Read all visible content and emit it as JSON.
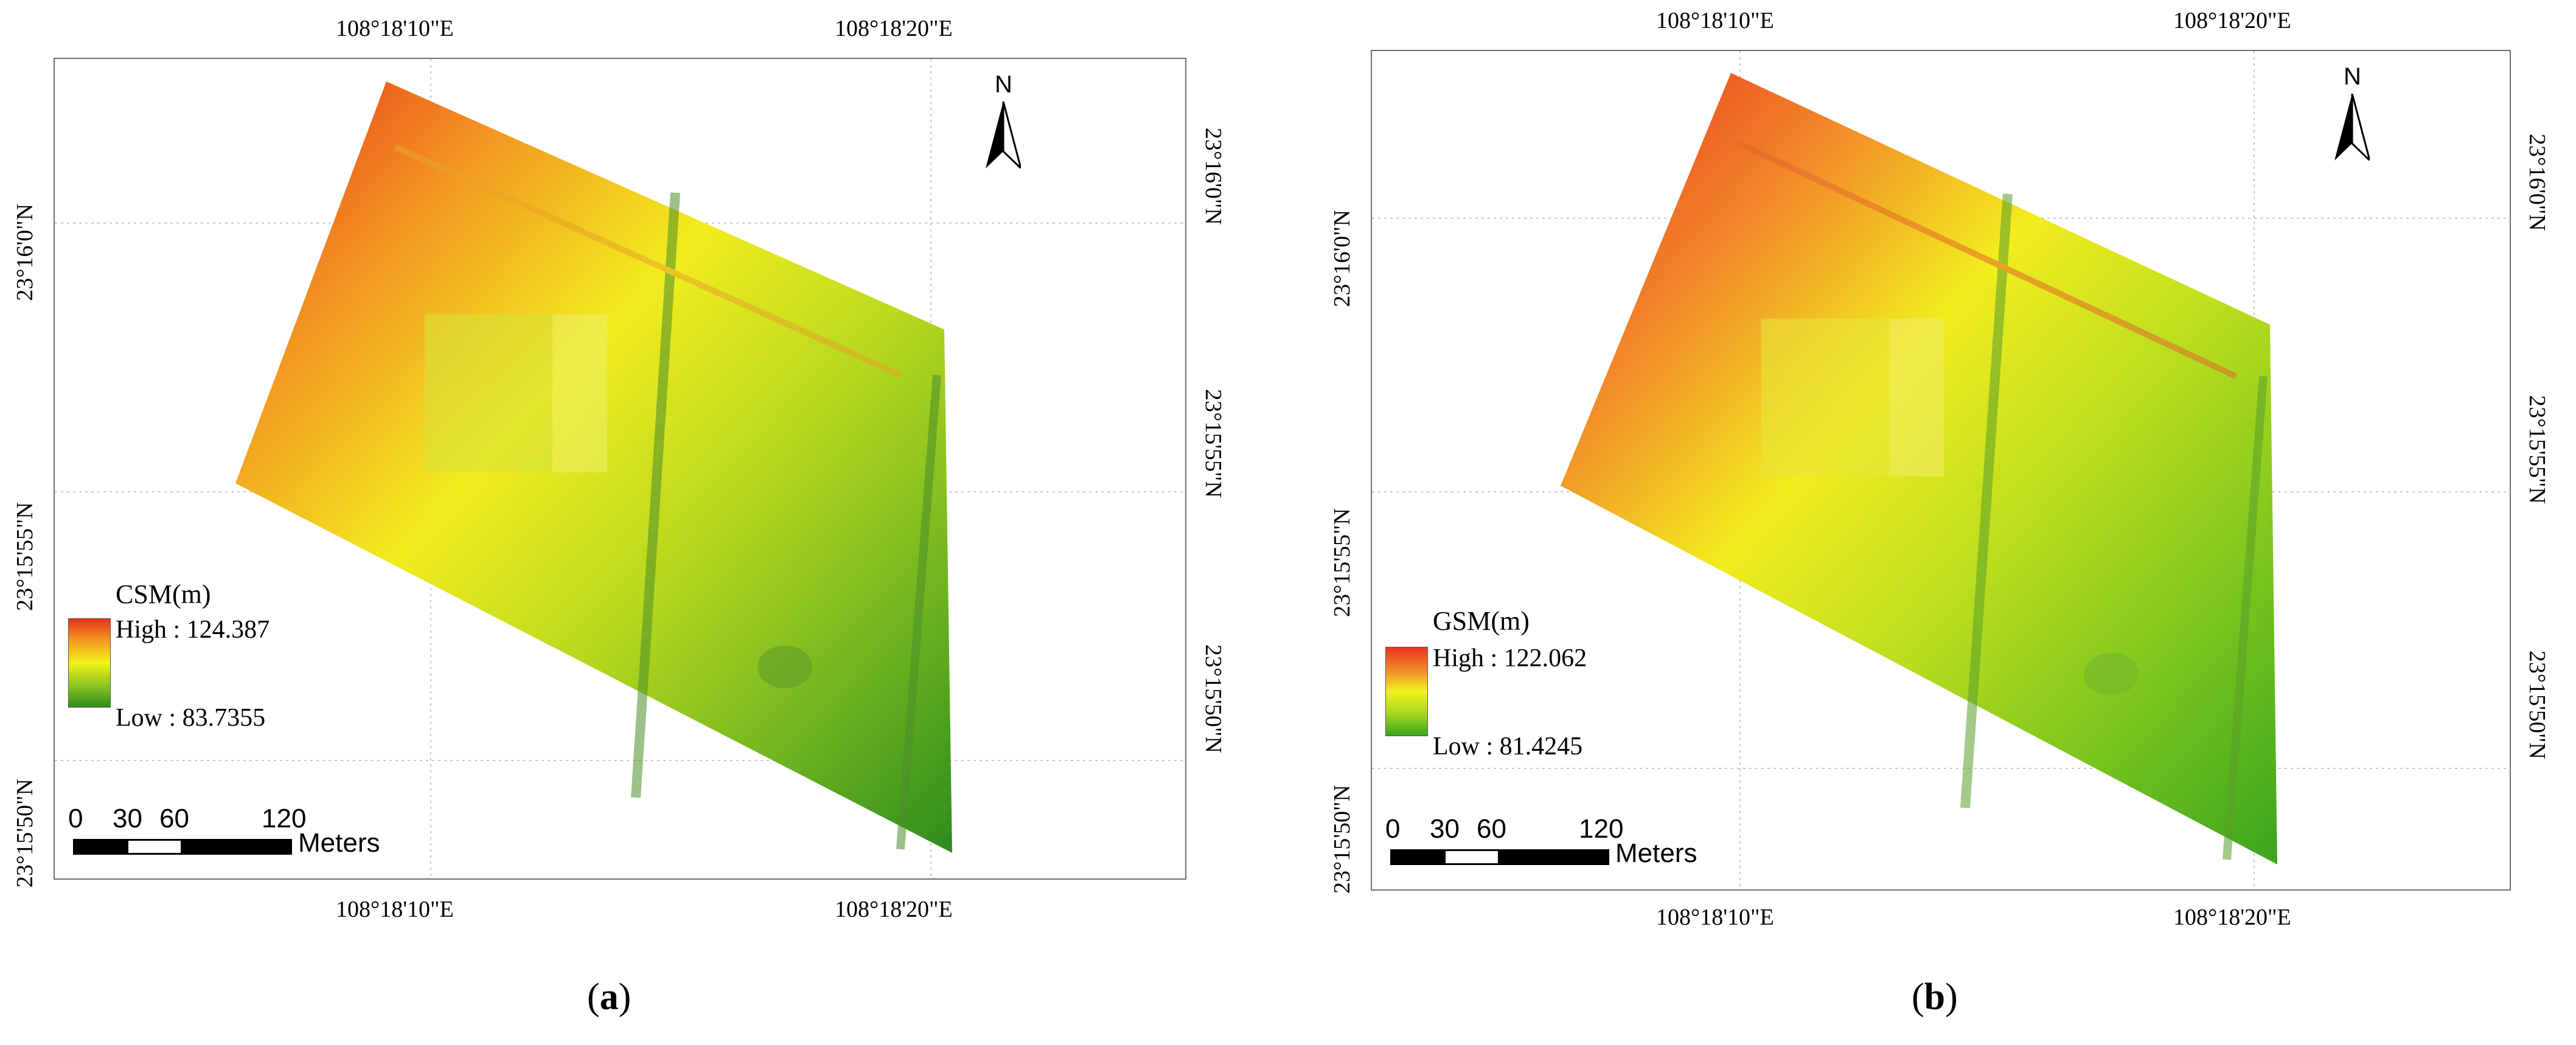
{
  "panels": [
    {
      "id": "a",
      "caption_open": "(",
      "caption_letter": "a",
      "caption_close": ")",
      "top_lon_labels": [
        "108°18'10\"E",
        "108°18'20\"E"
      ],
      "bottom_lon_labels": [
        "108°18'10\"E",
        "108°18'20\"E"
      ],
      "left_lat_labels": [
        "23°16'0\"N",
        "23°15'55\"N",
        "23°15'50\"N"
      ],
      "right_lat_labels": [
        "23°16'0\"N",
        "23°15'55\"N",
        "23°15'50\"N"
      ],
      "north_label": "N",
      "legend": {
        "title": "CSM(m)",
        "high_label": "High : 124.387",
        "low_label": "Low : 83.7355",
        "high_color": "#e8331c",
        "mid_color": "#f2f21a",
        "low_color": "#2e8c1c"
      },
      "scale": {
        "labels": [
          "0",
          "30",
          "60",
          "120"
        ],
        "units": "Meters"
      }
    },
    {
      "id": "b",
      "caption_open": "(",
      "caption_letter": "b",
      "caption_close": ")",
      "top_lon_labels": [
        "108°18'10\"E",
        "108°18'20\"E"
      ],
      "bottom_lon_labels": [
        "108°18'10\"E",
        "108°18'20\"E"
      ],
      "left_lat_labels": [
        "23°16'0\"N",
        "23°15'55\"N",
        "23°15'50\"N"
      ],
      "right_lat_labels": [
        "23°16'0\"N",
        "23°15'55\"N",
        "23°15'50\"N"
      ],
      "north_label": "N",
      "legend": {
        "title": "GSM(m)",
        "high_label": "High : 122.062",
        "low_label": "Low : 81.4245",
        "high_color": "#e8331c",
        "mid_color": "#f2f21a",
        "low_color": "#3aa51e"
      },
      "scale": {
        "labels": [
          "0",
          "30",
          "60",
          "120"
        ],
        "units": "Meters"
      }
    }
  ]
}
